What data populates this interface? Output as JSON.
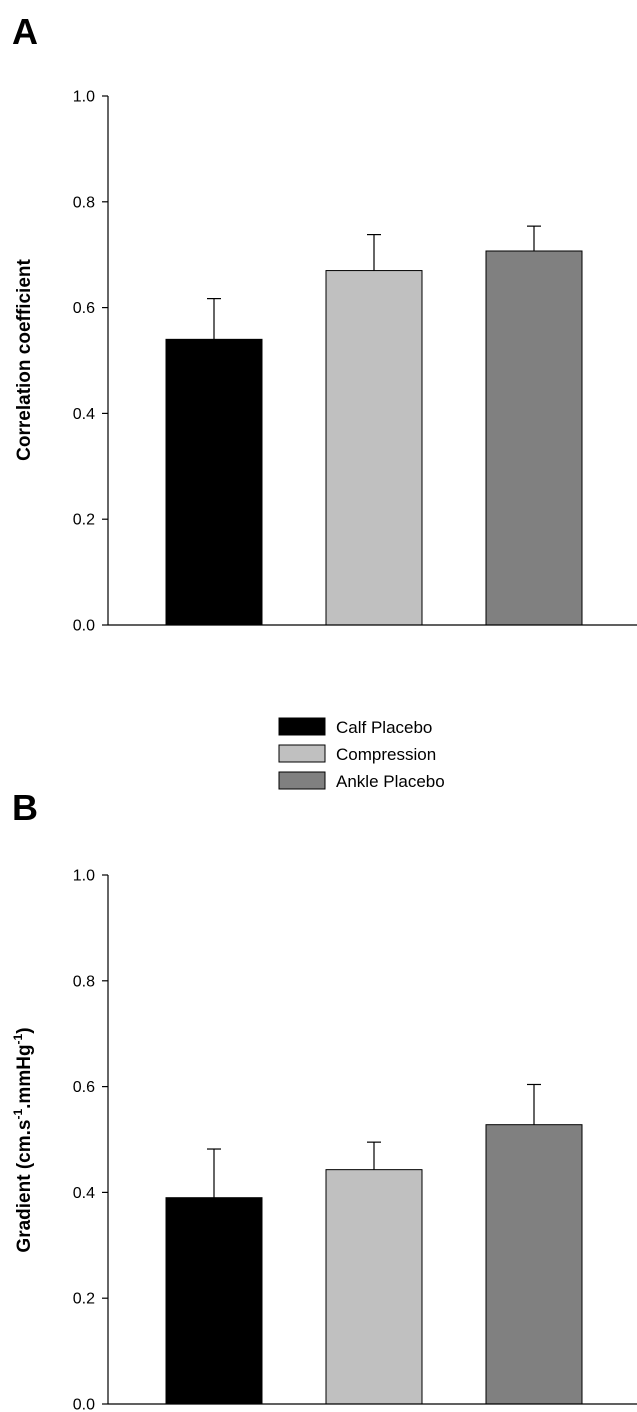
{
  "chart_data": [
    {
      "type": "bar",
      "panel": "A",
      "ylabel": "Correlation coefficient",
      "ylim": [
        0,
        1.0
      ],
      "yticks": [
        "0.0",
        "0.2",
        "0.4",
        "0.6",
        "0.8",
        "1.0"
      ],
      "ytick_values": [
        0,
        0.2,
        0.4,
        0.6,
        0.8,
        1.0
      ],
      "categories": [
        "Calf Placebo",
        "Compression",
        "Ankle Placebo"
      ],
      "values": [
        0.54,
        0.67,
        0.707
      ],
      "errors": [
        0.077,
        0.068,
        0.047
      ],
      "colors": [
        "#000000",
        "#c0c0c0",
        "#808080"
      ],
      "grid": false
    },
    {
      "type": "bar",
      "panel": "B",
      "ylabel_main": "Gradient (cm.s",
      "ylabel_exp1": "-1",
      "ylabel_mid": ".mmHg",
      "ylabel_exp2": "-1",
      "ylabel_end": ")",
      "ylim": [
        0,
        1.0
      ],
      "yticks": [
        "0.0",
        "0.2",
        "0.4",
        "0.6",
        "0.8",
        "1.0"
      ],
      "ytick_values": [
        0,
        0.2,
        0.4,
        0.6,
        0.8,
        1.0
      ],
      "categories": [
        "Calf Placebo",
        "Compression",
        "Ankle Placebo"
      ],
      "values": [
        0.39,
        0.443,
        0.528
      ],
      "errors": [
        0.092,
        0.052,
        0.076
      ],
      "colors": [
        "#000000",
        "#c0c0c0",
        "#808080"
      ],
      "grid": false
    }
  ],
  "legend": {
    "placement": "between panels",
    "items": [
      {
        "label": "Calf Placebo",
        "color": "#000000"
      },
      {
        "label": "Compression",
        "color": "#c0c0c0"
      },
      {
        "label": "Ankle Placebo",
        "color": "#808080"
      }
    ]
  }
}
